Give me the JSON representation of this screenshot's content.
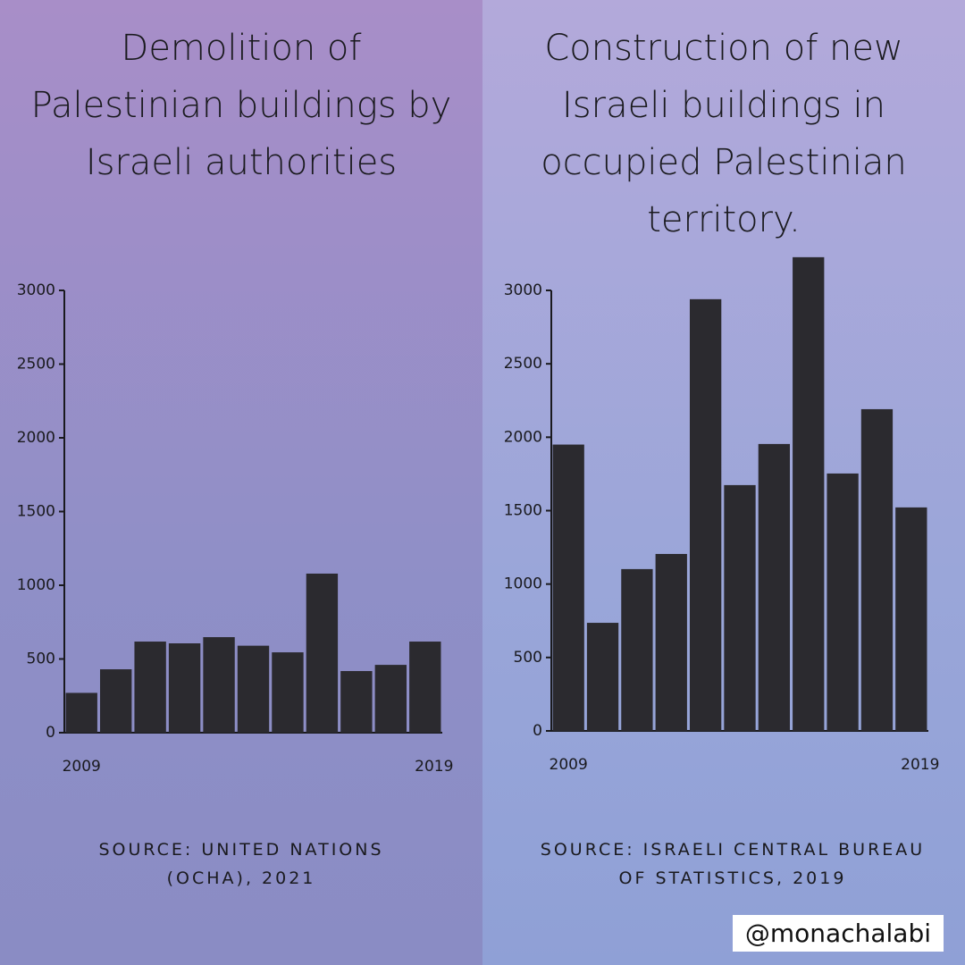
{
  "watermark": "@monachalabi",
  "chart_data": [
    {
      "type": "bar",
      "title": "Demolition of Palestinian buildings by Israeli authorities",
      "source": "SOURCE: UNITED NATIONS (OCHA), 2021",
      "categories": [
        "2009",
        null,
        null,
        null,
        null,
        null,
        null,
        null,
        null,
        null,
        "2019"
      ],
      "values": [
        270,
        430,
        618,
        606,
        648,
        590,
        545,
        1079,
        418,
        460,
        618
      ],
      "color": "#2b2a2f",
      "ylim": [
        0,
        3000
      ],
      "yticks": [
        0,
        500,
        1000,
        1500,
        2000,
        2500,
        3000
      ]
    },
    {
      "type": "bar",
      "title": "Construction of new Israeli buildings in occupied Palestinian territory.",
      "source": "SOURCE: ISRAELI CENTRAL BUREAU OF STATISTICS, 2019",
      "categories": [
        "2009",
        null,
        null,
        null,
        null,
        null,
        null,
        null,
        null,
        null,
        "2019"
      ],
      "values": [
        1950,
        736,
        1102,
        1205,
        2940,
        1674,
        1954,
        3226,
        1753,
        2191,
        1522
      ],
      "color": "#2b2a2f",
      "ylim": [
        0,
        3000
      ],
      "yticks": [
        0,
        500,
        1000,
        1500,
        2000,
        2500,
        3000
      ]
    }
  ]
}
